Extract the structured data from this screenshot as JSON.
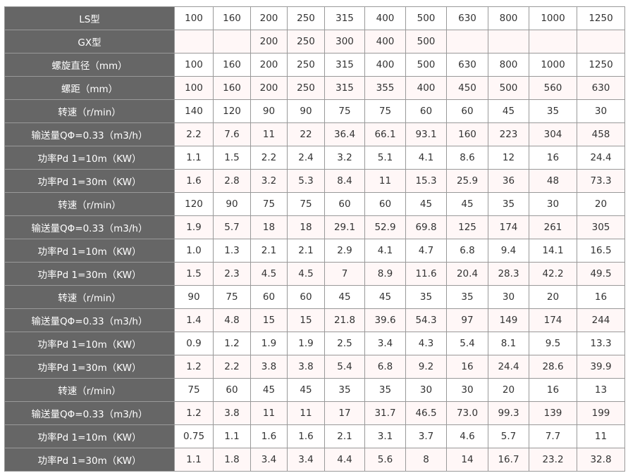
{
  "rows": [
    {
      "label": "LS型",
      "values": [
        "100",
        "160",
        "200",
        "250",
        "315",
        "400",
        "500",
        "630",
        "800",
        "1000",
        "1250"
      ]
    },
    {
      "label": "GX型",
      "values": [
        "",
        "",
        "200",
        "250",
        "300",
        "400",
        "500",
        "",
        "",
        "",
        ""
      ]
    },
    {
      "label": "螺旋直径（mm）",
      "values": [
        "100",
        "160",
        "200",
        "250",
        "315",
        "400",
        "500",
        "630",
        "800",
        "1000",
        "1250"
      ]
    },
    {
      "label": "螺距（mm）",
      "values": [
        "100",
        "160",
        "200",
        "250",
        "315",
        "355",
        "400",
        "450",
        "500",
        "560",
        "630"
      ]
    },
    {
      "label": "转速（r/min）",
      "values": [
        "140",
        "120",
        "90",
        "90",
        "75",
        "75",
        "60",
        "60",
        "45",
        "35",
        "30"
      ]
    },
    {
      "label": "输送量QΦ=0.33（m3/h）",
      "values": [
        "2.2",
        "7.6",
        "11",
        "22",
        "36.4",
        "66.1",
        "93.1",
        "160",
        "223",
        "304",
        "458"
      ]
    },
    {
      "label": "功率Pd 1=10m（KW）",
      "values": [
        "1.1",
        "1.5",
        "2.2",
        "2.4",
        "3.2",
        "5.1",
        "4.1",
        "8.6",
        "12",
        "16",
        "24.4"
      ]
    },
    {
      "label": "功率Pd 1=30m（KW）",
      "values": [
        "1.6",
        "2.8",
        "3.2",
        "5.3",
        "8.4",
        "11",
        "15.3",
        "25.9",
        "36",
        "48",
        "73.3"
      ]
    },
    {
      "label": "转速（r/min）",
      "values": [
        "120",
        "90",
        "75",
        "75",
        "60",
        "60",
        "45",
        "45",
        "35",
        "30",
        "20"
      ]
    },
    {
      "label": "输送量QΦ=0.33（m3/h）",
      "values": [
        "1.9",
        "5.7",
        "18",
        "18",
        "29.1",
        "52.9",
        "69.8",
        "125",
        "174",
        "261",
        "305"
      ]
    },
    {
      "label": "功率Pd 1=10m（KW）",
      "values": [
        "1.0",
        "1.3",
        "2.1",
        "2.1",
        "2.9",
        "4.1",
        "4.7",
        "6.8",
        "9.4",
        "14.1",
        "16.5"
      ]
    },
    {
      "label": "功率Pd 1=30m（KW）",
      "values": [
        "1.5",
        "2.3",
        "4.5",
        "4.5",
        "7",
        "8.9",
        "11.6",
        "20.4",
        "28.3",
        "42.2",
        "49.5"
      ]
    },
    {
      "label": "转速（r/min）",
      "values": [
        "90",
        "75",
        "60",
        "60",
        "45",
        "45",
        "35",
        "35",
        "30",
        "20",
        "16"
      ]
    },
    {
      "label": "输送量QΦ=0.33（m3/h）",
      "values": [
        "1.4",
        "4.8",
        "15",
        "15",
        "21.8",
        "39.6",
        "54.3",
        "97",
        "149",
        "174",
        "244"
      ]
    },
    {
      "label": "功率Pd 1=10m（KW）",
      "values": [
        "0.9",
        "1.2",
        "1.9",
        "1.9",
        "2.5",
        "3.4",
        "4.3",
        "5.4",
        "8.1",
        "9.5",
        "13.3"
      ]
    },
    {
      "label": "功率Pd 1=30m（KW）",
      "values": [
        "1.2",
        "2.2",
        "3.8",
        "3.8",
        "5.4",
        "6.8",
        "9.2",
        "16",
        "24.4",
        "28.6",
        "39.9"
      ]
    },
    {
      "label": "转速（r/min）",
      "values": [
        "75",
        "60",
        "45",
        "45",
        "35",
        "35",
        "30",
        "30",
        "20",
        "16",
        "13"
      ]
    },
    {
      "label": "输送量QΦ=0.33（m3/h）",
      "values": [
        "1.2",
        "3.8",
        "11",
        "11",
        "17",
        "31.7",
        "46.5",
        "73.0",
        "99.3",
        "139",
        "199"
      ]
    },
    {
      "label": "功率Pd 1=10m（KW）",
      "values": [
        "0.75",
        "1.1",
        "1.6",
        "1.6",
        "2.1",
        "3.1",
        "3.7",
        "4.6",
        "5.7",
        "7.7",
        "11"
      ]
    },
    {
      "label": "功率Pd 1=30m（KW）",
      "values": [
        "1.1",
        "1.8",
        "3.4",
        "3.4",
        "4.4",
        "5.6",
        "8",
        "14",
        "16.7",
        "23.2",
        "32.8"
      ]
    }
  ],
  "colors": {
    "label_bg": "#666666",
    "border": "#999999",
    "stripe": "#fff7f7"
  }
}
